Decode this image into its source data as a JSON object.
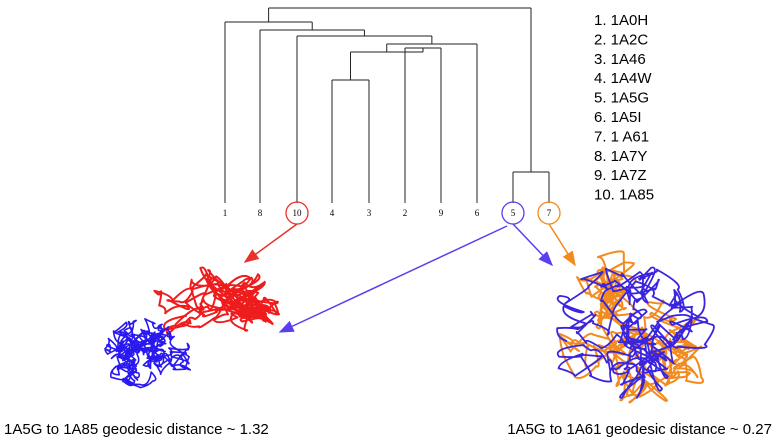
{
  "dendrogram": {
    "leaves": [
      "1",
      "8",
      "10",
      "4",
      "3",
      "2",
      "9",
      "6",
      "5",
      "7"
    ]
  },
  "legend": [
    "1. 1A0H",
    "2. 1A2C",
    "3. 1A46",
    "4. 1A4W",
    "5. 1A5G",
    "6. 1A5I",
    "7. 1 A61",
    "8. 1A7Y",
    "9. 1A7Z",
    "10. 1A85"
  ],
  "captions": {
    "left": "1A5G to 1A85 geodesic distance ~ 1.32",
    "right": "1A5G to 1A61 geodesic distance ~ 0.27"
  }
}
